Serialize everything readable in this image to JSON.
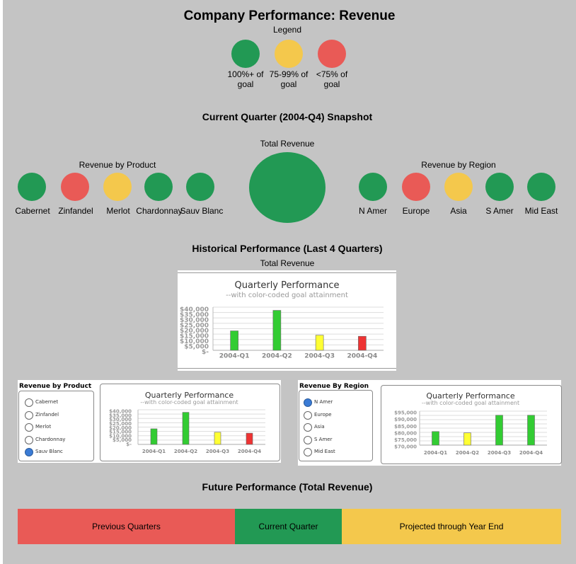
{
  "title": "Company Performance: Revenue",
  "legend": {
    "title": "Legend",
    "items": [
      {
        "label": "100%+ of goal",
        "color": "#229954"
      },
      {
        "label": "75-99% of goal",
        "color": "#f4c84c"
      },
      {
        "label": "<75% of goal",
        "color": "#e95a56"
      }
    ]
  },
  "snapshot": {
    "heading": "Current Quarter (2004-Q4) Snapshot",
    "product_title": "Revenue by Product",
    "products": [
      {
        "label": "Cabernet",
        "status": "green"
      },
      {
        "label": "Zinfandel",
        "status": "red"
      },
      {
        "label": "Merlot",
        "status": "yellow"
      },
      {
        "label": "Chardonnay",
        "status": "green"
      },
      {
        "label": "Sauv Blanc",
        "status": "green"
      }
    ],
    "total_title": "Total Revenue",
    "total_status": "green",
    "region_title": "Revenue by Region",
    "regions": [
      {
        "label": "N Amer",
        "status": "green"
      },
      {
        "label": "Europe",
        "status": "red"
      },
      {
        "label": "Asia",
        "status": "yellow"
      },
      {
        "label": "S Amer",
        "status": "green"
      },
      {
        "label": "Mid East",
        "status": "green"
      }
    ]
  },
  "historical": {
    "heading": "Historical Performance (Last 4 Quarters)",
    "total_label": "Total Revenue",
    "product_box_title": "Revenue by Product",
    "product_options": [
      "Cabernet",
      "Zinfandel",
      "Merlot",
      "Chardonnay",
      "Sauv Blanc"
    ],
    "product_selected": "Sauv Blanc",
    "region_box_title": "Revenue By Region",
    "region_options": [
      "N Amer",
      "Europe",
      "Asia",
      "S Amer",
      "Mid East"
    ],
    "region_selected": "N Amer"
  },
  "chart_data": [
    {
      "type": "bar",
      "title": "Quarterly Performance",
      "subtitle": "--with color-coded goal attainment",
      "categories": [
        "2004-Q1",
        "2004-Q2",
        "2004-Q3",
        "2004-Q4"
      ],
      "values": [
        18000,
        37000,
        14000,
        13000
      ],
      "colors": [
        "#33cc33",
        "#33cc33",
        "#ffff33",
        "#ee3333"
      ],
      "ylim": [
        0,
        40000
      ],
      "ytick_labels": [
        "$40,000",
        "$35,000",
        "$30,000",
        "$25,000",
        "$20,000",
        "$15,000",
        "$10,000",
        "$5,000",
        "$-"
      ]
    },
    {
      "type": "bar",
      "title": "Quarterly Performance",
      "subtitle": "--with color-coded goal attainment",
      "categories": [
        "2004-Q1",
        "2004-Q2",
        "2004-Q3",
        "2004-Q4"
      ],
      "values": [
        18000,
        37000,
        14000,
        13000
      ],
      "colors": [
        "#33cc33",
        "#33cc33",
        "#ffff33",
        "#ee3333"
      ],
      "ylim": [
        0,
        40000
      ],
      "ytick_labels": [
        "$40,000",
        "$35,000",
        "$30,000",
        "$25,000",
        "$20,000",
        "$15,000",
        "$10,000",
        "$5,000",
        "$-"
      ]
    },
    {
      "type": "bar",
      "title": "Quarterly Performance",
      "subtitle": "--with color-coded goal attainment",
      "categories": [
        "2004-Q1",
        "2004-Q2",
        "2004-Q3",
        "2004-Q4"
      ],
      "values": [
        80000,
        79000,
        92000,
        92000
      ],
      "colors": [
        "#33cc33",
        "#ffff33",
        "#33cc33",
        "#33cc33"
      ],
      "ylim": [
        70000,
        95000
      ],
      "ytick_labels": [
        "$95,000",
        "$90,000",
        "$85,000",
        "$80,000",
        "$75,000",
        "$70,000"
      ]
    }
  ],
  "future": {
    "heading": "Future Performance (Total Revenue)",
    "segments": [
      {
        "label": "Previous Quarters",
        "color": "#e95a56"
      },
      {
        "label": "Current Quarter",
        "color": "#229954"
      },
      {
        "label": "Projected through Year End",
        "color": "#f4c84c"
      }
    ]
  }
}
